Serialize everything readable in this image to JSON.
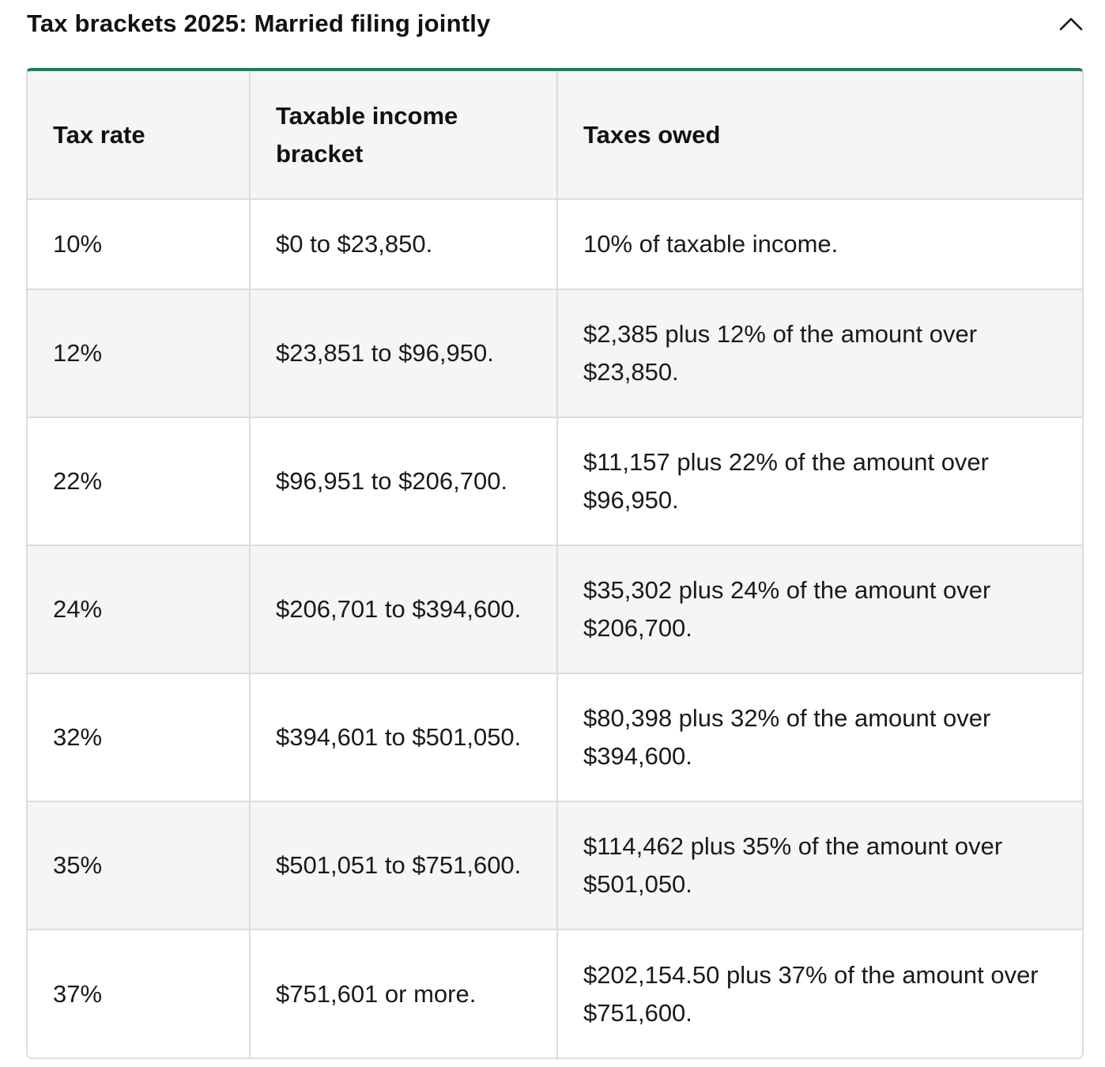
{
  "accordion": {
    "title": "Tax brackets 2025: Married filing jointly",
    "toggle_icon": "chevron-up-icon",
    "expanded": true
  },
  "colors": {
    "accent": "#1b7f5a",
    "header_bg": "#f5f5f5",
    "stripe_bg": "#f5f5f5",
    "border": "#dcdcdc"
  },
  "table": {
    "headers": {
      "rate": "Tax rate",
      "bracket": "Taxable income bracket",
      "owed": "Taxes owed"
    },
    "rows": [
      {
        "rate": "10%",
        "bracket": "$0 to $23,850.",
        "owed": "10% of taxable income."
      },
      {
        "rate": "12%",
        "bracket": "$23,851 to $96,950.",
        "owed": "$2,385 plus 12% of the amount over $23,850."
      },
      {
        "rate": "22%",
        "bracket": "$96,951 to $206,700.",
        "owed": "$11,157 plus 22% of the amount over $96,950."
      },
      {
        "rate": "24%",
        "bracket": "$206,701 to $394,600.",
        "owed": "$35,302 plus 24% of the amount over $206,700."
      },
      {
        "rate": "32%",
        "bracket": "$394,601 to $501,050.",
        "owed": "$80,398 plus 32% of the amount over $394,600."
      },
      {
        "rate": "35%",
        "bracket": "$501,051 to $751,600.",
        "owed": "$114,462 plus 35% of the amount over $501,050."
      },
      {
        "rate": "37%",
        "bracket": "$751,601 or more.",
        "owed": "$202,154.50 plus 37% of the amount over $751,600."
      }
    ]
  }
}
